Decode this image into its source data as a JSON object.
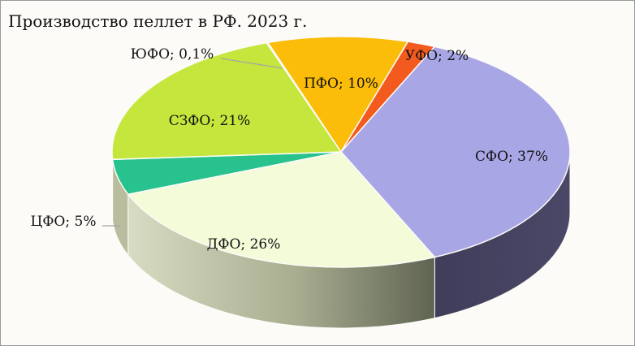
{
  "chart_data": {
    "type": "pie",
    "title": "Производство пеллет в РФ. 2023 г.",
    "slices": [
      {
        "label": "СФО; 37%",
        "value": 37,
        "color": "#a9a6e6"
      },
      {
        "label": "ДФО; 26%",
        "value": 26,
        "color": "#f3fbd8"
      },
      {
        "label": "ЦФО; 5%",
        "value": 5,
        "color": "#27c28e"
      },
      {
        "label": "СЗФО; 21%",
        "value": 21,
        "color": "#c5e63c"
      },
      {
        "label": "ЮФО; 0,1%",
        "value": 0.1,
        "color": "#c9b98a"
      },
      {
        "label": "ПФО; 10%",
        "value": 10,
        "color": "#fbbd0a"
      },
      {
        "label": "УФО; 2%",
        "value": 2,
        "color": "#f35a1e"
      }
    ]
  }
}
